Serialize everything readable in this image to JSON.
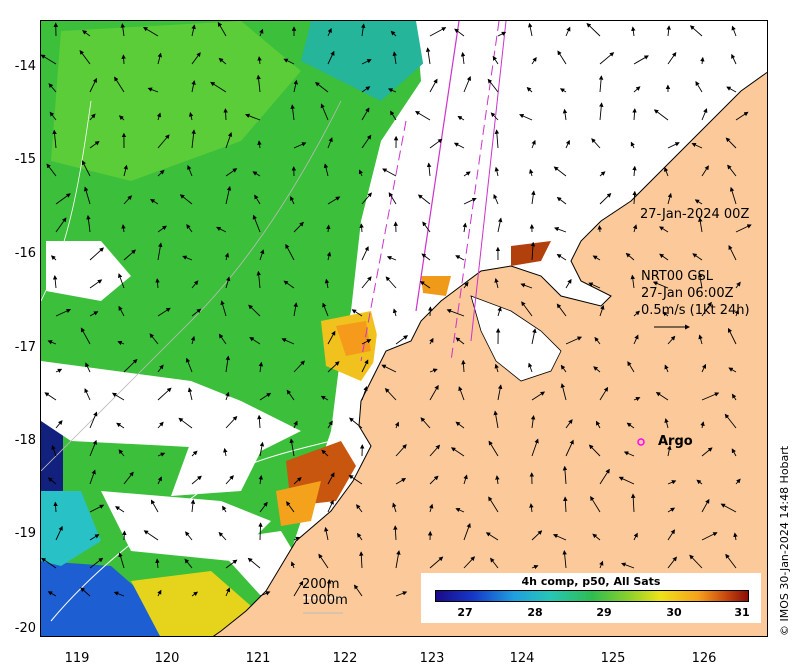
{
  "map": {
    "y_ticks": [
      "-14",
      "-15",
      "-16",
      "-17",
      "-18",
      "-19",
      "-20"
    ],
    "x_ticks": [
      "119",
      "120",
      "121",
      "122",
      "123",
      "124",
      "125",
      "126"
    ],
    "colors": {
      "land": "#fbc99a",
      "no_data": "#ffffff",
      "green": "#3cbf3a",
      "track": "#cc33cc"
    }
  },
  "annotations": {
    "swath_time": "27-Jan-2024 00Z",
    "product": "NRT00 GSL",
    "time": "27-Jan 06:00Z",
    "vector_scale": "0.5m/s (1kt 24h)",
    "isobath_200": "200m",
    "isobath_1000": "1000m",
    "argo": "Argo"
  },
  "colorbar": {
    "title": "4h comp, p50, All Sats",
    "ticks": [
      "27",
      "28",
      "29",
      "30",
      "31"
    ]
  },
  "credit": "© IMOS 30-Jan-2024 14:48 Hobart"
}
